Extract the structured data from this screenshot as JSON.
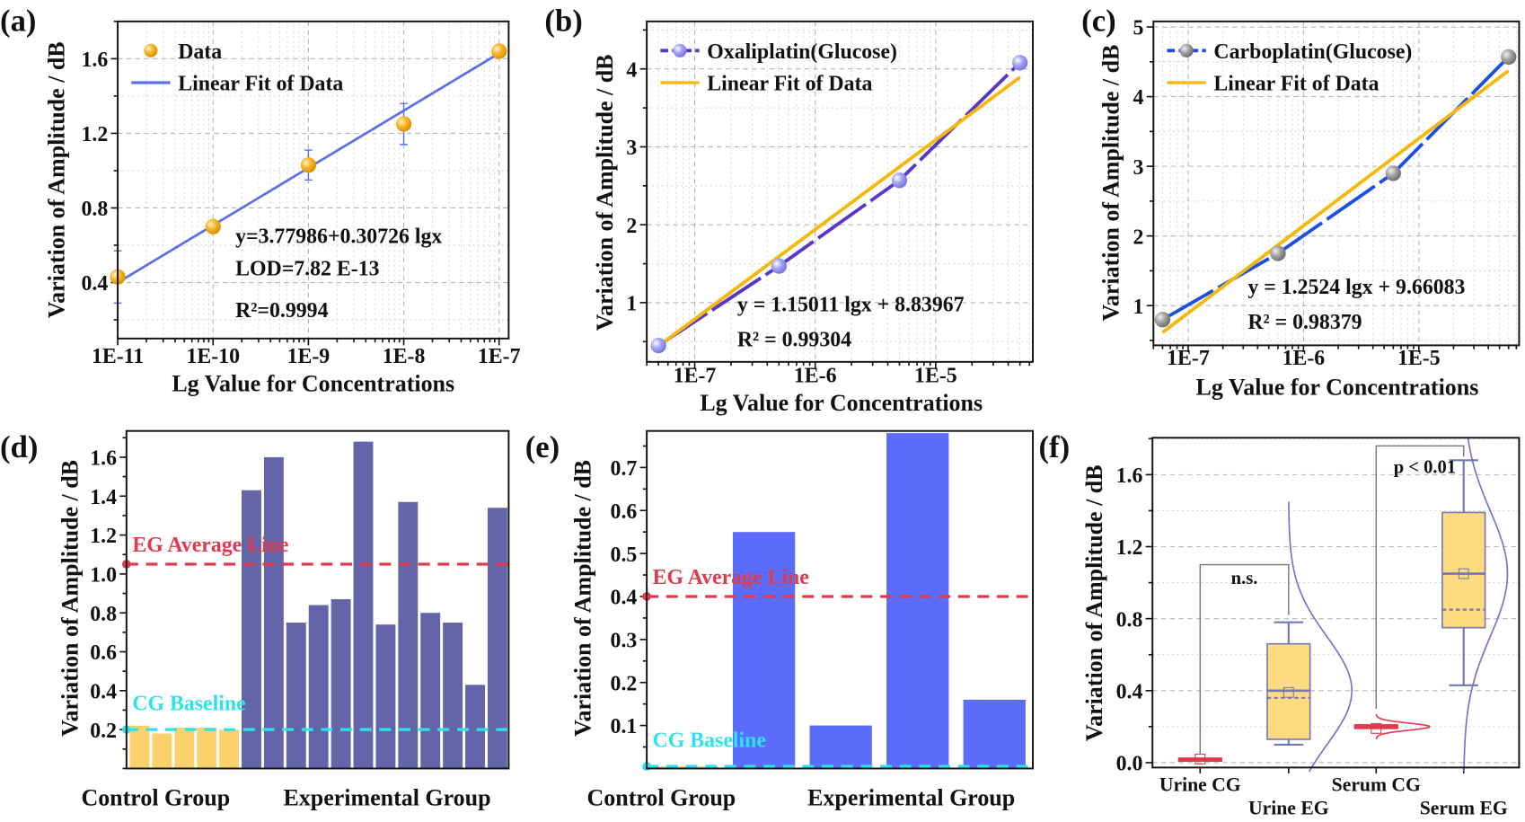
{
  "chart_data": [
    {
      "panel_label": "(a)",
      "type": "scatter",
      "xscale": "log",
      "xlabel": "Lg Value for Concentrations",
      "ylabel": "Variation of Amplitude / dB",
      "xlim": [
        1e-11,
        1.26e-07
      ],
      "ylim": [
        0.1,
        1.8
      ],
      "x_ticks": [
        1e-11,
        1e-10,
        1e-09,
        1e-08,
        1e-07
      ],
      "x_tick_labels": [
        "1E-11",
        "1E-10",
        "1E-9",
        "1E-8",
        "1E-7"
      ],
      "y_ticks": [
        0.4,
        0.8,
        1.2,
        1.6
      ],
      "y_tick_labels": [
        "0.4",
        "0.8",
        "1.2",
        "1.6"
      ],
      "y_minor_step": 0.2,
      "grid": true,
      "legend": "top-left",
      "series": [
        {
          "name": "Data",
          "kind": "points",
          "x": [
            1e-11,
            1e-10,
            1e-09,
            1e-08,
            1e-07
          ],
          "y": [
            0.43,
            0.7,
            1.03,
            1.25,
            1.64
          ],
          "yerr": [
            0.14,
            0.02,
            0.08,
            0.11,
            0.02
          ],
          "color": "#f7b52c",
          "err_color": "#5a6ee6"
        },
        {
          "name": "Linear Fit of Data",
          "kind": "fit",
          "intercept": 3.77986,
          "slope": 0.30726,
          "color": "#5a6ee6"
        }
      ],
      "annotations": [
        "y=3.77986+0.30726 lgx",
        "LOD=7.82 E-13",
        "R²=0.9994"
      ]
    },
    {
      "panel_label": "(b)",
      "type": "line",
      "xscale": "log",
      "xlabel": "Lg Value for Concentrations",
      "ylabel": "Variation of Amplitude / dB",
      "xlim": [
        4e-08,
        6.4e-05
      ],
      "ylim": [
        0.24,
        4.61
      ],
      "x_ticks": [
        1e-07,
        1e-06,
        1e-05
      ],
      "x_tick_labels": [
        "1E-7",
        "1E-6",
        "1E-5"
      ],
      "y_ticks": [
        1,
        2,
        3,
        4
      ],
      "y_tick_labels": [
        "1",
        "2",
        "3",
        "4"
      ],
      "y_minor_step": 0.5,
      "grid": true,
      "legend": "top-left",
      "series": [
        {
          "name": "Oxaliplatin(Glucose)",
          "kind": "line-points",
          "x": [
            5e-08,
            5e-07,
            5e-06,
            5e-05
          ],
          "y": [
            0.45,
            1.47,
            2.57,
            4.08
          ],
          "color": "#5b35c8",
          "marker_color": "#a5a3f7"
        },
        {
          "name": "Linear Fit of Data",
          "kind": "fit",
          "intercept": 8.83967,
          "slope": 1.15011,
          "color": "#f5b70a"
        }
      ],
      "annotations": [
        "y = 1.15011 lgx + 8.83967",
        "R² = 0.99304"
      ]
    },
    {
      "panel_label": "(c)",
      "type": "line",
      "xscale": "log",
      "xlabel": "Lg Value for Concentrations",
      "ylabel": "Variation of Amplitude / dB",
      "xlim": [
        5e-08,
        7.4e-05
      ],
      "ylim": [
        0.43,
        5.08
      ],
      "x_ticks": [
        1e-07,
        1e-06,
        1e-05
      ],
      "x_tick_labels": [
        "1E-7",
        "1E-6",
        "1E-5"
      ],
      "y_ticks": [
        1,
        2,
        3,
        4,
        5
      ],
      "y_tick_labels": [
        "1",
        "2",
        "3",
        "4",
        "5"
      ],
      "y_minor_step": 0.5,
      "grid": true,
      "legend": "top-left",
      "series": [
        {
          "name": "Carboplatin(Glucose)",
          "kind": "line-points",
          "x": [
            6e-08,
            6e-07,
            6e-06,
            6e-05
          ],
          "y": [
            0.8,
            1.75,
            2.9,
            4.57
          ],
          "color": "#1b4fe3",
          "marker_color": "#9e9e9e"
        },
        {
          "name": "Linear Fit of Data",
          "kind": "fit",
          "intercept": 9.66083,
          "slope": 1.2524,
          "color": "#f5b70a"
        }
      ],
      "annotations": [
        "y = 1.2524 lgx + 9.66083",
        "R² = 0.98379"
      ]
    },
    {
      "panel_label": "(d)",
      "type": "bar",
      "ylabel": "Variation of Amplitude / dB",
      "ylim": [
        0,
        1.735
      ],
      "y_ticks": [
        0.2,
        0.4,
        0.6,
        0.8,
        1.0,
        1.2,
        1.4,
        1.6
      ],
      "y_tick_labels": [
        "0.2",
        "0.4",
        "0.6",
        "0.8",
        "1.0",
        "1.2",
        "1.4",
        "1.6"
      ],
      "y_minor_step": 0.1,
      "grid": false,
      "groups": [
        {
          "label": "Control Group",
          "values": [
            0.22,
            0.18,
            0.21,
            0.21,
            0.2
          ],
          "color": "#fbd16b"
        },
        {
          "label": "Experimental Group",
          "values": [
            1.43,
            1.6,
            0.75,
            0.84,
            0.87,
            1.68,
            0.74,
            1.37,
            0.8,
            0.75,
            0.43,
            1.34
          ],
          "color": "#6464a8"
        }
      ],
      "reference_lines": [
        {
          "label": "EG Average Line",
          "value": 1.05,
          "color": "#e03a4e"
        },
        {
          "label": "CG Baseline",
          "value": 0.2,
          "color": "#2de3eb"
        }
      ]
    },
    {
      "panel_label": "(e)",
      "type": "bar",
      "ylabel": "Variation of Amplitude / dB",
      "ylim": [
        0,
        0.785
      ],
      "y_ticks": [
        0.1,
        0.2,
        0.3,
        0.4,
        0.5,
        0.6,
        0.7
      ],
      "y_tick_labels": [
        "0.1",
        "0.2",
        "0.3",
        "0.4",
        "0.5",
        "0.6",
        "0.7"
      ],
      "y_minor_step": 0.05,
      "grid": false,
      "groups": [
        {
          "label": "Control Group",
          "values": [
            0.005
          ],
          "color": "#fbd16b"
        },
        {
          "label": "Experimental Group",
          "values": [
            0.55,
            0.1,
            0.78,
            0.16
          ],
          "color": "#5a6cf9"
        }
      ],
      "reference_lines": [
        {
          "label": "EG Average Line",
          "value": 0.4,
          "color": "#e03a4e"
        },
        {
          "label": "CG Baseline",
          "value": 0.005,
          "color": "#2de3eb"
        }
      ]
    },
    {
      "panel_label": "(f)",
      "type": "box",
      "ylabel": "Variation of Amplitude / dB",
      "ylim": [
        -0.027,
        1.805
      ],
      "y_ticks": [
        0,
        0.4,
        0.8,
        1.2,
        1.6
      ],
      "y_tick_labels": [
        "0.0",
        "0.4",
        "0.8",
        "1.2",
        "1.6"
      ],
      "y_minor_step": 0.2,
      "grid": true,
      "categories": [
        "Urine CG",
        "Urine EG",
        "Serum CG",
        "Serum EG"
      ],
      "boxes": [
        {
          "q1": 0.015,
          "q3": 0.025,
          "median": 0.02,
          "mean": 0.02,
          "whisker": [
            0.015,
            0.025
          ],
          "dotted": 0.02,
          "stroke": "#e03a4e",
          "fill": "#e03a4e"
        },
        {
          "q1": 0.13,
          "q3": 0.66,
          "median": 0.4,
          "mean": 0.39,
          "whisker": [
            0.1,
            0.78
          ],
          "dotted": 0.36,
          "stroke": "#7676b5",
          "fill": "#fddc80"
        },
        {
          "q1": 0.19,
          "q3": 0.21,
          "median": 0.2,
          "mean": 0.19,
          "whisker": [
            0.19,
            0.21
          ],
          "dotted": 0.2,
          "stroke": "#e03a4e",
          "fill": "#e03a4e"
        },
        {
          "q1": 0.75,
          "q3": 1.39,
          "median": 1.05,
          "mean": 1.05,
          "whisker": [
            0.43,
            1.68
          ],
          "dotted": 0.85,
          "stroke": "#7676b5",
          "fill": "#fddc80"
        }
      ],
      "distributions": [
        {
          "category": 1,
          "center": 0.4,
          "spread": 0.3,
          "range": [
            -0.05,
            1.45
          ],
          "color": "#6f70c8"
        },
        {
          "category": 2,
          "center": 0.2,
          "spread": 0.02,
          "range": [
            0.13,
            0.27
          ],
          "color": "#e03a4e"
        },
        {
          "category": 3,
          "center": 1.05,
          "spread": 0.35,
          "range": [
            -0.05,
            1.8
          ],
          "color": "#6f70c8"
        }
      ],
      "significance": [
        {
          "from": 0,
          "to": 1,
          "level": 1.1,
          "label": "n.s."
        },
        {
          "from": 2,
          "to": 3,
          "level": 1.76,
          "label": "p < 0.01"
        }
      ]
    }
  ]
}
